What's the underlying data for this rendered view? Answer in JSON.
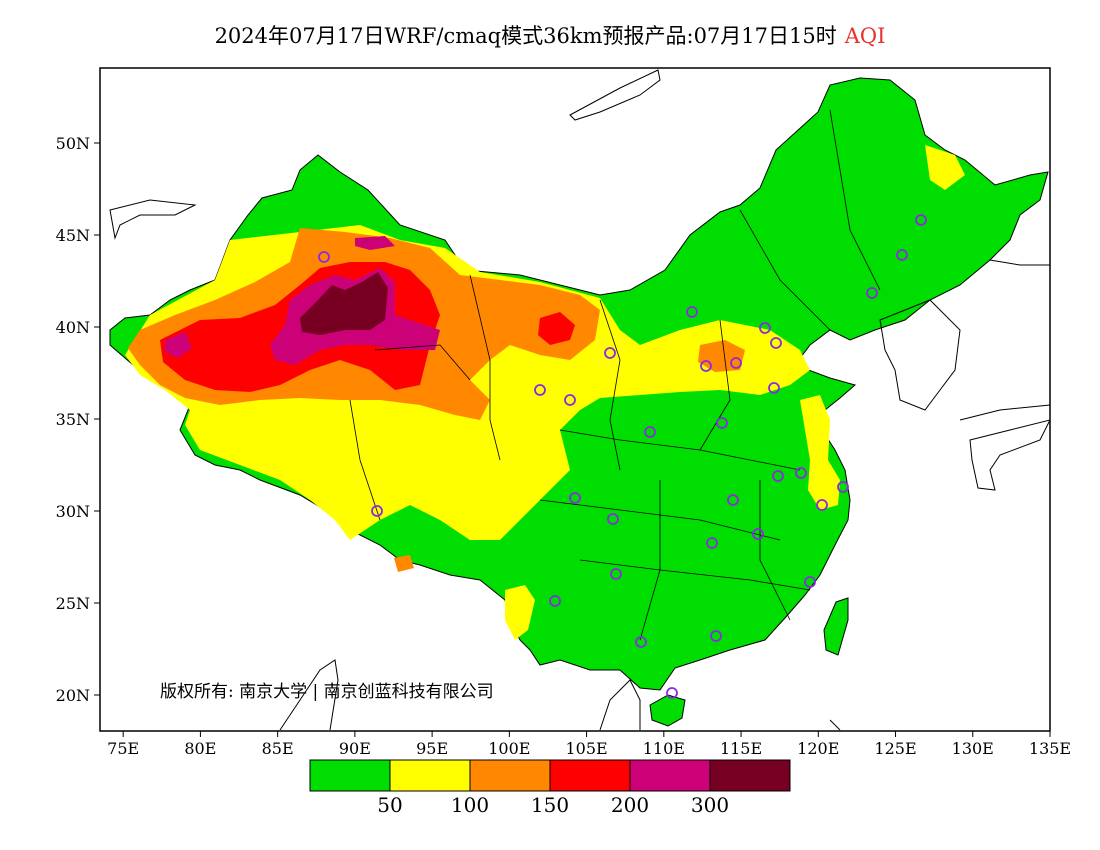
{
  "title": {
    "main": "2024年07月17日WRF/cmaq模式36km预报产品:07月17日15时",
    "variable": "AQI"
  },
  "axes": {
    "lon_ticks": [
      "75E",
      "80E",
      "85E",
      "90E",
      "95E",
      "100E",
      "105E",
      "110E",
      "115E",
      "120E",
      "125E",
      "130E",
      "135E"
    ],
    "lat_ticks": [
      "50N",
      "45N",
      "40N",
      "35N",
      "30N",
      "25N",
      "20N"
    ]
  },
  "copyright": "版权所有: 南京大学 | 南京创蓝科技有限公司",
  "legend": {
    "thresholds": [
      "50",
      "100",
      "150",
      "200",
      "300"
    ],
    "colors": [
      "#00dd00",
      "#ffff00",
      "#ff8800",
      "#ff0000",
      "#cc0077",
      "#770022"
    ]
  },
  "colors": {
    "good": "#00dd00",
    "moderate": "#ffff00",
    "usg": "#ff8800",
    "unhealthy": "#ff0000",
    "very_unhealthy": "#cc0077",
    "hazardous": "#770022",
    "station_marker": "#8a2be2",
    "title_accent": "#e8312f"
  }
}
